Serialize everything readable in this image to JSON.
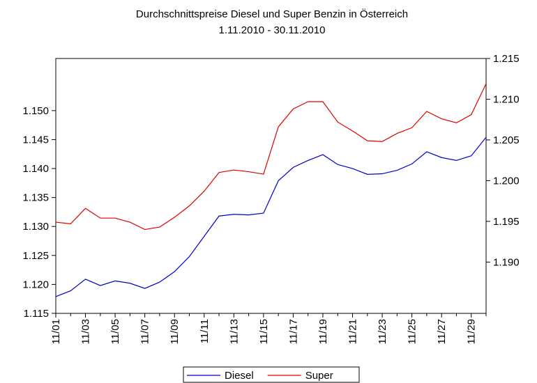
{
  "chart_data": {
    "type": "line",
    "title": "Durchschnittspreise Diesel und Super Benzin in Österreich",
    "subtitle": "1.11.2010 - 30.11.2010",
    "categories": [
      "11/01",
      null,
      "11/03",
      null,
      "11/05",
      null,
      "11/07",
      null,
      "11/09",
      null,
      "11/11",
      null,
      "11/13",
      null,
      "11/15",
      null,
      "11/17",
      null,
      "11/19",
      null,
      "11/21",
      null,
      "11/23",
      null,
      "11/25",
      null,
      "11/27",
      null,
      "11/29",
      null
    ],
    "series": [
      {
        "name": "Diesel",
        "color": "#0000cc",
        "values": [
          1.1179,
          1.1189,
          1.1209,
          1.1198,
          1.1206,
          1.1202,
          1.1193,
          1.1204,
          1.1222,
          1.1248,
          1.1283,
          1.1318,
          1.1321,
          1.132,
          1.1323,
          1.1379,
          1.1402,
          1.1414,
          1.1424,
          1.1407,
          1.14,
          1.139,
          1.1391,
          1.1397,
          1.1408,
          1.1429,
          1.1419,
          1.1414,
          1.1422,
          1.1454
        ]
      },
      {
        "name": "Super",
        "color": "#dd0000",
        "axis": "y2",
        "values": [
          1.1949,
          1.1947,
          1.1966,
          1.1954,
          1.1954,
          1.1949,
          1.194,
          1.1943,
          1.1955,
          1.1969,
          1.1987,
          1.201,
          1.2013,
          1.2011,
          1.2008,
          1.2066,
          1.2088,
          1.2097,
          1.2097,
          1.2072,
          1.2061,
          1.2049,
          1.2048,
          1.2058,
          1.2065,
          1.2085,
          1.2076,
          1.2071,
          1.2081,
          1.2119
        ]
      }
    ],
    "ylim": [
      1.115,
      1.159
    ],
    "yticks": [
      1.115,
      {
        "value": 1.12,
        "label": "1.120"
      },
      1.125,
      {
        "value": 1.13,
        "label": "1.130"
      },
      1.135,
      {
        "value": 1.14,
        "label": "1.140"
      },
      1.145,
      {
        "value": 1.15,
        "label": "1.150"
      }
    ],
    "y2lim": [
      1.1837,
      1.215
    ],
    "y2ticks": [
      {
        "value": 1.19,
        "label": "1.190"
      },
      1.195,
      {
        "value": 1.2,
        "label": "1.200"
      },
      1.205,
      {
        "value": 1.21,
        "label": "1.210"
      },
      1.215
    ],
    "legend": "bottom"
  }
}
